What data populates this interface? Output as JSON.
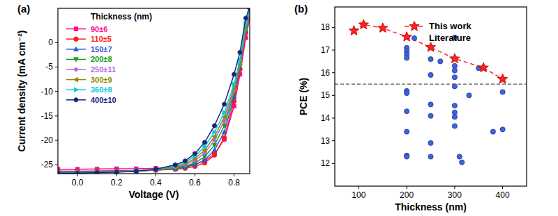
{
  "chart_data": [
    {
      "type": "line",
      "title": "(a)",
      "x_label": "Voltage (V)",
      "y_label": "Current density (mA cm⁻²)",
      "legend_title": "Thickness (nm)",
      "legend": "upper left",
      "xlim": [
        -0.1,
        0.88
      ],
      "ylim": [
        -26.8,
        7
      ],
      "xticks": [
        {
          "value": 0,
          "label": "0.0"
        },
        0.2,
        0.4,
        0.6,
        0.8
      ],
      "yticks": [
        -25,
        -20,
        -15,
        -10,
        -5,
        0
      ],
      "x": [
        -0.1,
        0,
        0.1,
        0.2,
        0.3,
        0.4,
        0.5,
        0.55,
        0.6,
        0.65,
        0.7,
        0.75,
        0.8,
        0.83,
        0.86,
        0.88
      ],
      "series": [
        {
          "name": "90±6",
          "color": "#ff0a8c",
          "marker": "square",
          "values": [
            -25.9,
            -25.9,
            -25.85,
            -25.8,
            -25.8,
            -25.7,
            -25.5,
            -25.3,
            -24.9,
            -24.2,
            -22.8,
            -19.8,
            -13.0,
            -6.5,
            1.0,
            5
          ]
        },
        {
          "name": "110±5",
          "color": "#ff1a1a",
          "marker": "circle",
          "values": [
            -26.3,
            -26.3,
            -26.25,
            -26.2,
            -26.2,
            -26.1,
            -25.9,
            -25.7,
            -25.3,
            -24.6,
            -23.0,
            -19.5,
            -12.0,
            -5.5,
            2.0,
            6
          ]
        },
        {
          "name": "150±7",
          "color": "#2f56d6",
          "marker": "triangle-up",
          "values": [
            -26.4,
            -26.4,
            -26.35,
            -26.3,
            -26.25,
            -26.1,
            -25.8,
            -25.5,
            -25.0,
            -24.0,
            -22.0,
            -18.3,
            -11.0,
            -5.0,
            2.5,
            6
          ]
        },
        {
          "name": "200±8",
          "color": "#14a014",
          "marker": "triangle-down",
          "values": [
            -26.5,
            -26.5,
            -26.45,
            -26.4,
            -26.3,
            -26.1,
            -25.7,
            -25.3,
            -24.6,
            -23.3,
            -21.0,
            -17.0,
            -10.2,
            -4.8,
            2.5,
            6
          ]
        },
        {
          "name": "250±11",
          "color": "#b565e8",
          "marker": "diamond",
          "values": [
            -26.5,
            -26.5,
            -26.45,
            -26.4,
            -26.3,
            -26.0,
            -25.5,
            -25.0,
            -24.1,
            -22.6,
            -20.0,
            -16.0,
            -9.8,
            -4.5,
            2.8,
            6
          ]
        },
        {
          "name": "300±9",
          "color": "#8c8c00",
          "marker": "triangle-left",
          "values": [
            -26.6,
            -26.6,
            -26.5,
            -26.4,
            -26.3,
            -26.0,
            -25.4,
            -24.8,
            -23.7,
            -22.0,
            -19.2,
            -15.2,
            -9.3,
            -4.3,
            3,
            6
          ]
        },
        {
          "name": "360±8",
          "color": "#00c8e6",
          "marker": "triangle-right",
          "values": [
            -26.6,
            -26.6,
            -26.5,
            -26.4,
            -26.2,
            -25.9,
            -25.2,
            -24.5,
            -23.2,
            -21.3,
            -18.3,
            -14.3,
            -8.5,
            -3.5,
            4,
            6
          ]
        },
        {
          "name": "400±10",
          "color": "#1a237e",
          "marker": "hexagon",
          "values": [
            -26.7,
            -26.7,
            -26.6,
            -26.5,
            -26.3,
            -25.9,
            -25.0,
            -24.2,
            -22.7,
            -20.4,
            -17.0,
            -12.6,
            -6.5,
            -2.0,
            5,
            7
          ]
        }
      ]
    },
    {
      "type": "scatter",
      "title": "(b)",
      "x_label": "Thickness (nm)",
      "y_label": "PCE (%)",
      "legend": "upper right",
      "xlim": [
        50,
        450
      ],
      "ylim": [
        11,
        18.9
      ],
      "xticks": [
        100,
        200,
        300,
        400
      ],
      "yticks": [
        12,
        13,
        14,
        15,
        16,
        17,
        18
      ],
      "reference_y": 15.5,
      "series": [
        {
          "name": "This work",
          "type": "line",
          "color": "#ff2020",
          "marker": "star",
          "line_style": "dashed",
          "x": [
            90,
            110,
            150,
            200,
            250,
            300,
            360,
            400
          ],
          "values": [
            17.85,
            18.12,
            17.97,
            17.58,
            17.12,
            16.62,
            16.22,
            15.72
          ]
        },
        {
          "name": "Literature",
          "type": "scatter",
          "color": "#3f63d8",
          "marker": "circle",
          "x": [
            200,
            200,
            200,
            200,
            200,
            200,
            200,
            200,
            200,
            200,
            250,
            250,
            250,
            250,
            250,
            250,
            270,
            300,
            300,
            300,
            300,
            300,
            300,
            300,
            300,
            300,
            310,
            315,
            330,
            350,
            380,
            400,
            400
          ],
          "values": [
            17.1,
            16.95,
            16.8,
            16.65,
            15.2,
            15.1,
            14.3,
            13.4,
            12.35,
            12.3,
            16.6,
            15.9,
            14.6,
            14.1,
            12.9,
            12.3,
            16.5,
            17.55,
            16.3,
            16.1,
            15.8,
            15.4,
            14.55,
            14.25,
            14.05,
            13.65,
            12.3,
            12.05,
            15.0,
            16.2,
            13.4,
            15.15,
            13.5
          ]
        }
      ]
    }
  ]
}
